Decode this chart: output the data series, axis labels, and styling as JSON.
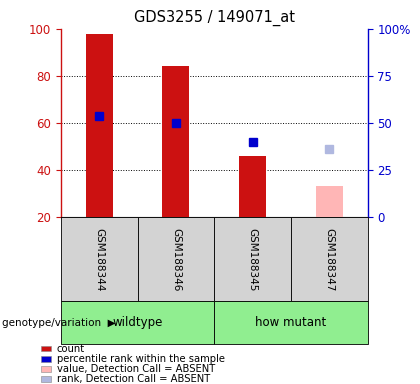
{
  "title": "GDS3255 / 149071_at",
  "samples": [
    "GSM188344",
    "GSM188346",
    "GSM188345",
    "GSM188347"
  ],
  "group_boundaries": [
    {
      "start": 0,
      "end": 2,
      "label": "wildtype"
    },
    {
      "start": 2,
      "end": 4,
      "label": "how mutant"
    }
  ],
  "left_ylim": [
    20,
    100
  ],
  "left_yticks": [
    20,
    40,
    60,
    80,
    100
  ],
  "right_ylim": [
    0,
    100
  ],
  "right_yticks": [
    0,
    25,
    50,
    75,
    100
  ],
  "right_yticklabels": [
    "0",
    "25",
    "50",
    "75",
    "100%"
  ],
  "bar_bottom": 20,
  "counts": [
    98,
    84,
    46,
    null
  ],
  "count_color": "#cc1111",
  "pct_ranks": [
    63,
    60,
    52,
    null
  ],
  "pct_rank_color": "#0000cd",
  "absent_values": [
    null,
    null,
    null,
    33
  ],
  "absent_value_color": "#ffb6b6",
  "absent_ranks": [
    null,
    null,
    null,
    49
  ],
  "absent_rank_color": "#b0b8e0",
  "bar_width": 0.35,
  "marker_size": 6,
  "genotype_label": "genotype/variation",
  "legend_items": [
    {
      "label": "count",
      "color": "#cc1111"
    },
    {
      "label": "percentile rank within the sample",
      "color": "#0000cd"
    },
    {
      "label": "value, Detection Call = ABSENT",
      "color": "#ffb6b6"
    },
    {
      "label": "rank, Detection Call = ABSENT",
      "color": "#b0b8e0"
    }
  ],
  "plot_bg": "#ffffff",
  "sample_area_bg": "#d3d3d3",
  "group_color": "#90ee90",
  "left_tick_color": "#cc1111",
  "right_tick_color": "#0000cd",
  "grid_color": "#000000",
  "grid_yticks": [
    40,
    60,
    80
  ]
}
